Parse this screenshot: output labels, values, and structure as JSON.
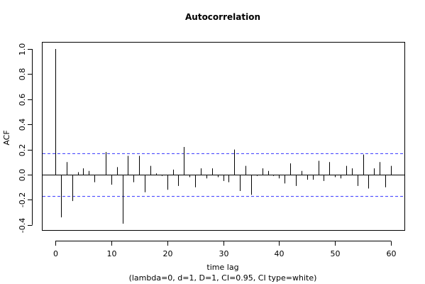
{
  "chart_data": {
    "type": "bar",
    "title": "Autocorrelation",
    "xlabel": "time lag",
    "subtitle": "(lambda=0, d=1, D=1, CI=0.95, CI type=white)",
    "ylabel": "ACF",
    "xlim": [
      0,
      60
    ],
    "ylim": [
      -0.4,
      1.0
    ],
    "x_ticks": [
      "0",
      "10",
      "20",
      "30",
      "40",
      "50",
      "60"
    ],
    "y_ticks": [
      "1.0",
      "0.8",
      "0.6",
      "0.4",
      "0.2",
      "0.0",
      "-0.2",
      "-0.4"
    ],
    "ci_upper": 0.17,
    "ci_lower": -0.17,
    "colors": {
      "bars": "#000000",
      "ci": "#3333ff",
      "zero_line": "#000000",
      "frame": "#000000"
    },
    "lags": [
      0,
      1,
      2,
      3,
      4,
      5,
      6,
      7,
      8,
      9,
      10,
      11,
      12,
      13,
      14,
      15,
      16,
      17,
      18,
      19,
      20,
      21,
      22,
      23,
      24,
      25,
      26,
      27,
      28,
      29,
      30,
      31,
      32,
      33,
      34,
      35,
      36,
      37,
      38,
      39,
      40,
      41,
      42,
      43,
      44,
      45,
      46,
      47,
      48,
      49,
      50,
      51,
      52,
      53,
      54,
      55,
      56,
      57,
      58,
      59,
      60
    ],
    "acf": [
      1.0,
      -0.34,
      0.1,
      -0.21,
      0.02,
      0.05,
      0.03,
      -0.06,
      0.0,
      0.18,
      -0.08,
      0.06,
      -0.39,
      0.15,
      -0.06,
      0.15,
      -0.14,
      0.07,
      0.01,
      -0.01,
      -0.12,
      0.04,
      -0.09,
      0.22,
      -0.02,
      -0.1,
      0.05,
      -0.03,
      0.05,
      -0.02,
      -0.05,
      -0.06,
      0.2,
      -0.13,
      0.07,
      -0.16,
      -0.01,
      0.05,
      0.03,
      -0.01,
      -0.03,
      -0.07,
      0.09,
      -0.09,
      0.03,
      -0.04,
      -0.04,
      0.11,
      -0.05,
      0.1,
      -0.02,
      -0.03,
      0.07,
      0.05,
      -0.09,
      0.16,
      -0.11,
      0.05,
      0.1,
      -0.1,
      0.07
    ]
  }
}
